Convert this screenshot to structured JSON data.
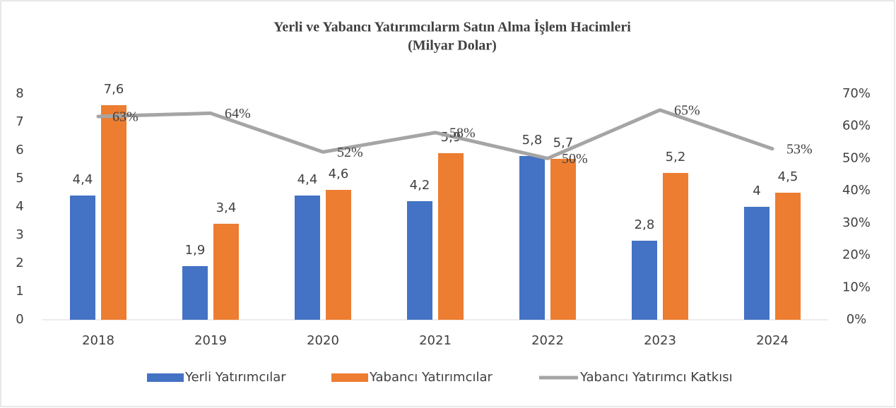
{
  "chart_data": {
    "type": "bar",
    "title": "Yerli ve Yabancı Yatırımcılarm Satın Alma İşlem Hacimleri",
    "subtitle": "(Milyar Dolar)",
    "categories": [
      "2018",
      "2019",
      "2020",
      "2021",
      "2022",
      "2023",
      "2024"
    ],
    "series": [
      {
        "name": "Yerli Yatırımcılar",
        "type": "bar",
        "color": "#4472c4",
        "values": [
          4.4,
          1.9,
          4.4,
          4.2,
          5.8,
          2.8,
          4
        ],
        "value_labels": [
          "4,4",
          "1,9",
          "4,4",
          "4,2",
          "5,8",
          "2,8",
          "4"
        ]
      },
      {
        "name": "Yabancı Yatırımcılar",
        "type": "bar",
        "color": "#ed7d31",
        "values": [
          7.6,
          3.4,
          4.6,
          5.9,
          5.7,
          5.2,
          4.5
        ],
        "value_labels": [
          "7,6",
          "3,4",
          "4,6",
          "5,9",
          "5,7",
          "5,2",
          "4,5"
        ]
      },
      {
        "name": "Yabancı Yatırımcı Katkısı",
        "type": "line",
        "axis": "y2",
        "color": "#a5a5a5",
        "values": [
          63,
          64,
          52,
          58,
          50,
          65,
          53
        ],
        "value_labels": [
          "63%",
          "64%",
          "52%",
          "58%",
          "50%",
          "65%",
          "53%"
        ]
      }
    ],
    "ylim": [
      0,
      8
    ],
    "yticks": [
      0,
      1,
      2,
      3,
      4,
      5,
      6,
      7,
      8
    ],
    "y2lim": [
      0,
      70
    ],
    "y2ticks": [
      {
        "value": 0,
        "label": "0%"
      },
      {
        "value": 10,
        "label": "10%"
      },
      {
        "value": 20,
        "label": "20%"
      },
      {
        "value": 30,
        "label": "30%"
      },
      {
        "value": 40,
        "label": "40%"
      },
      {
        "value": 50,
        "label": "50%"
      },
      {
        "value": 60,
        "label": "60%"
      },
      {
        "value": 70,
        "label": "70%"
      }
    ],
    "legend": "bottom"
  }
}
